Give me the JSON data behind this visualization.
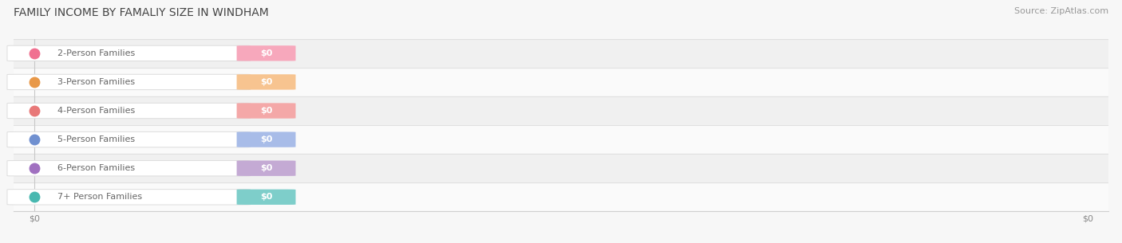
{
  "title": "FAMILY INCOME BY FAMALIY SIZE IN WINDHAM",
  "source": "Source: ZipAtlas.com",
  "categories": [
    "2-Person Families",
    "3-Person Families",
    "4-Person Families",
    "5-Person Families",
    "6-Person Families",
    "7+ Person Families"
  ],
  "values": [
    0,
    0,
    0,
    0,
    0,
    0
  ],
  "bar_colors": [
    "#f7a8bc",
    "#f7c490",
    "#f4a8a8",
    "#a8bce8",
    "#c4aad4",
    "#7ececa"
  ],
  "dot_colors": [
    "#f07090",
    "#e89848",
    "#e87878",
    "#7090d0",
    "#a070c0",
    "#48b8b0"
  ],
  "label_text_color": "#666666",
  "value_text_color": "#ffffff",
  "row_bg_light": "#f0f0f0",
  "row_bg_white": "#fafafa",
  "separator_color": "#e0e0e0",
  "background_color": "#f7f7f7",
  "title_fontsize": 10,
  "source_fontsize": 8,
  "label_fontsize": 8,
  "value_fontsize": 8,
  "tick_fontsize": 8,
  "xtick_labels": [
    "$0",
    "$0"
  ],
  "xtick_positions": [
    0.0,
    1.0
  ]
}
